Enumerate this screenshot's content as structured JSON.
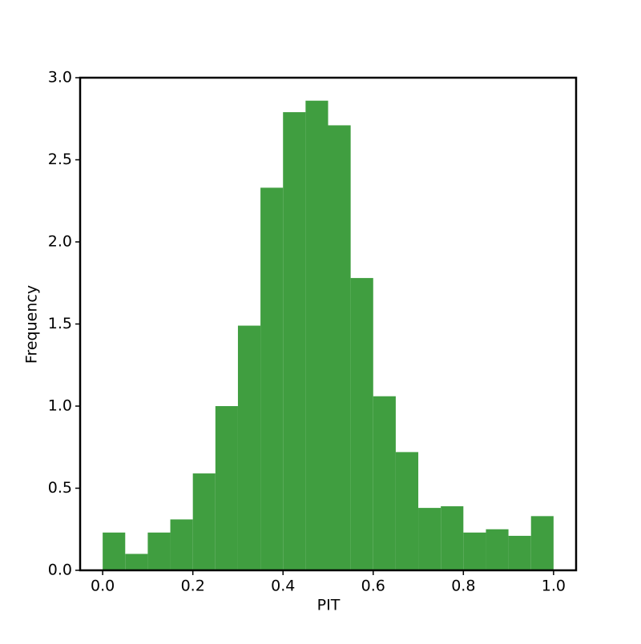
{
  "chart_data": {
    "type": "histogram",
    "xlabel": "PIT",
    "ylabel": "Frequency",
    "color": "#409e40",
    "bins": [
      0,
      0.05,
      0.1,
      0.15,
      0.2,
      0.25,
      0.3,
      0.35,
      0.4,
      0.45,
      0.5,
      0.55,
      0.6,
      0.65,
      0.7,
      0.75,
      0.8,
      0.85,
      0.9,
      0.95,
      1
    ],
    "values": [
      0.23,
      0.1,
      0.23,
      0.31,
      0.59,
      1.0,
      1.49,
      2.33,
      2.79,
      2.86,
      2.71,
      1.78,
      1.06,
      0.72,
      0.38,
      0.39,
      0.23,
      0.25,
      0.21,
      0.33
    ],
    "xlim": [
      -0.05,
      1.05
    ],
    "ylim": [
      0,
      3
    ],
    "xticks": [
      {
        "value": 0,
        "label": "0.0"
      },
      0.2,
      0.4,
      0.6,
      0.8,
      {
        "value": 1,
        "label": "1.0"
      }
    ],
    "yticks": [
      {
        "value": 0,
        "label": "0.0"
      },
      0.5,
      {
        "value": 1,
        "label": "1.0"
      },
      1.5,
      {
        "value": 2,
        "label": "2.0"
      },
      2.5,
      {
        "value": 3,
        "label": "3.0"
      }
    ],
    "grid": false
  }
}
